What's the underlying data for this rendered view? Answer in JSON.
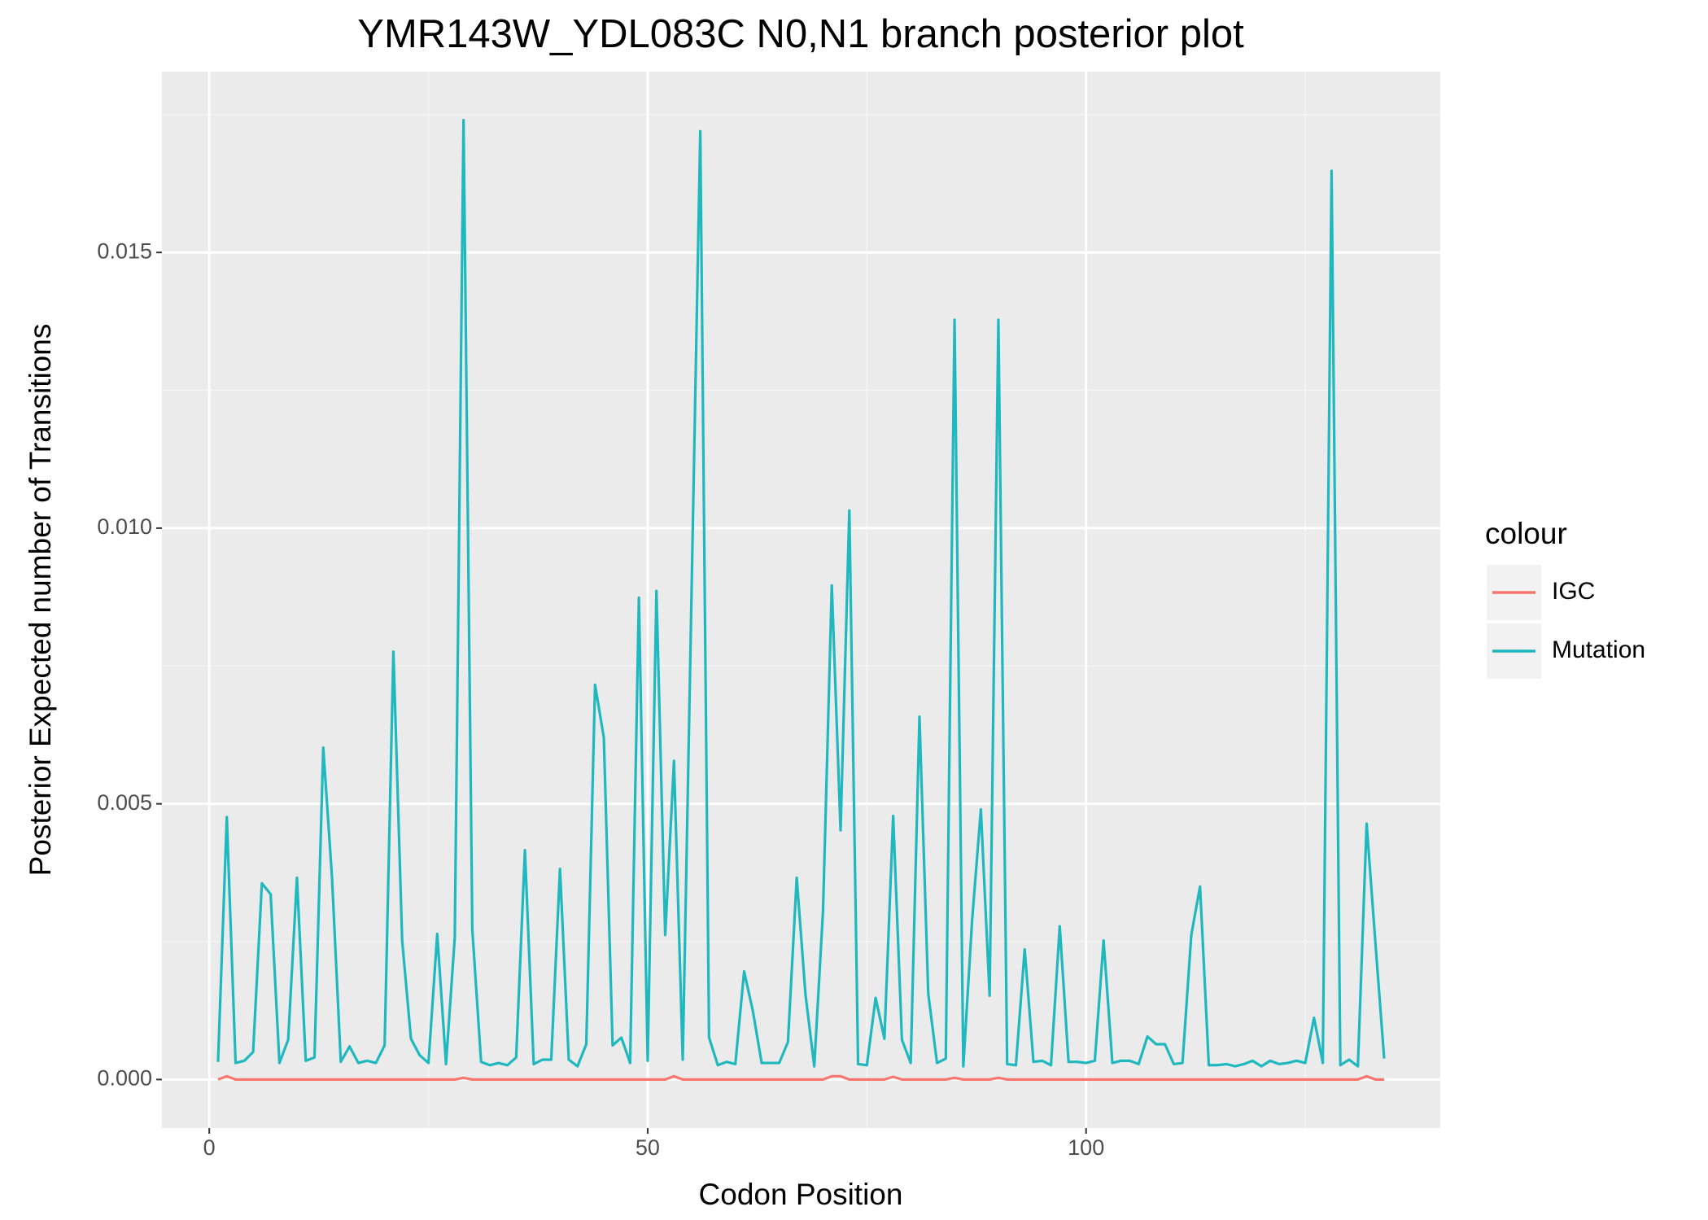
{
  "chart_data": {
    "type": "line",
    "title": "YMR143W_YDL083C N0,N1 branch posterior plot",
    "x_label": "Codon Position",
    "y_label": "Posterior Expected number of Transitions",
    "legend_title": "colour",
    "legend_position": "right",
    "grid": true,
    "xlim": [
      -5.4,
      140.4
    ],
    "xticks": [
      0,
      50,
      100
    ],
    "ylim": [
      -0.00088,
      0.01828
    ],
    "yticks": [
      {
        "value": 0,
        "label": "0.000"
      },
      0.005,
      {
        "value": 0.01,
        "label": "0.010"
      },
      0.015
    ],
    "x": [
      1,
      2,
      3,
      4,
      5,
      6,
      7,
      8,
      9,
      10,
      11,
      12,
      13,
      14,
      15,
      16,
      17,
      18,
      19,
      20,
      21,
      22,
      23,
      24,
      25,
      26,
      27,
      28,
      29,
      30,
      31,
      32,
      33,
      34,
      35,
      36,
      37,
      38,
      39,
      40,
      41,
      42,
      43,
      44,
      45,
      46,
      47,
      48,
      49,
      50,
      51,
      52,
      53,
      54,
      55,
      56,
      57,
      58,
      59,
      60,
      61,
      62,
      63,
      64,
      65,
      66,
      67,
      68,
      69,
      70,
      71,
      72,
      73,
      74,
      75,
      76,
      77,
      78,
      79,
      80,
      81,
      82,
      83,
      84,
      85,
      86,
      87,
      88,
      89,
      90,
      91,
      92,
      93,
      94,
      95,
      96,
      97,
      98,
      99,
      100,
      101,
      102,
      103,
      104,
      105,
      106,
      107,
      108,
      109,
      110,
      111,
      112,
      113,
      114,
      115,
      116,
      117,
      118,
      119,
      120,
      121,
      122,
      123,
      124,
      125,
      126,
      127,
      128,
      129,
      130,
      131,
      132,
      133,
      134
    ],
    "series": [
      {
        "name": "IGC",
        "color": "#F8766D",
        "values": [
          0,
          6e-05,
          0,
          0,
          0,
          0,
          0,
          0,
          0,
          0,
          0,
          0,
          0,
          0,
          0,
          0,
          0,
          0,
          0,
          0,
          0,
          0,
          0,
          0,
          0,
          0,
          0,
          0,
          3e-05,
          0,
          0,
          0,
          0,
          0,
          0,
          0,
          0,
          0,
          0,
          0,
          0,
          0,
          0,
          0,
          0,
          0,
          0,
          0,
          0,
          0,
          0,
          0,
          6e-05,
          0,
          0,
          0,
          0,
          0,
          0,
          0,
          0,
          0,
          0,
          0,
          0,
          0,
          0,
          0,
          0,
          0,
          6e-05,
          6e-05,
          0,
          0,
          0,
          0,
          0,
          5e-05,
          0,
          0,
          0,
          0,
          0,
          0,
          3e-05,
          0,
          0,
          0,
          0,
          3e-05,
          0,
          0,
          0,
          0,
          0,
          0,
          0,
          0,
          0,
          0,
          0,
          0,
          0,
          0,
          0,
          0,
          0,
          0,
          0,
          0,
          0,
          0,
          0,
          0,
          0,
          0,
          0,
          0,
          0,
          0,
          0,
          0,
          0,
          0,
          0,
          0,
          0,
          0,
          0,
          0,
          0,
          6e-05,
          0,
          0
        ]
      },
      {
        "name": "Mutation",
        "color": "#1FB8BE",
        "values": [
          0.00032,
          0.00476,
          0.0003,
          0.00034,
          0.0005,
          0.00356,
          0.00336,
          0.0003,
          0.00072,
          0.00366,
          0.00034,
          0.0004,
          0.00602,
          0.00366,
          0.00032,
          0.0006,
          0.0003,
          0.00034,
          0.0003,
          0.00062,
          0.00776,
          0.00252,
          0.00074,
          0.00044,
          0.0003,
          0.00264,
          0.00028,
          0.00258,
          0.0174,
          0.00272,
          0.00032,
          0.00026,
          0.0003,
          0.00026,
          0.0004,
          0.00416,
          0.00028,
          0.00036,
          0.00036,
          0.00382,
          0.00036,
          0.00024,
          0.00064,
          0.00716,
          0.0062,
          0.00062,
          0.00076,
          0.0003,
          0.00874,
          0.00034,
          0.00886,
          0.00262,
          0.00578,
          0.00036,
          0.00878,
          0.0172,
          0.00076,
          0.00026,
          0.00032,
          0.00028,
          0.00196,
          0.00124,
          0.0003,
          0.0003,
          0.0003,
          0.00068,
          0.00366,
          0.00154,
          0.00024,
          0.00306,
          0.00896,
          0.00452,
          0.01032,
          0.00028,
          0.00026,
          0.00148,
          0.00074,
          0.00478,
          0.00072,
          0.0003,
          0.00658,
          0.00156,
          0.0003,
          0.00038,
          0.01378,
          0.00024,
          0.00288,
          0.0049,
          0.00152,
          0.01378,
          0.00028,
          0.00026,
          0.00236,
          0.00032,
          0.00034,
          0.00026,
          0.00278,
          0.00032,
          0.00032,
          0.0003,
          0.00034,
          0.00252,
          0.0003,
          0.00034,
          0.00034,
          0.00028,
          0.00078,
          0.00064,
          0.00064,
          0.00028,
          0.0003,
          0.00262,
          0.0035,
          0.00026,
          0.00026,
          0.00028,
          0.00024,
          0.00028,
          0.00034,
          0.00024,
          0.00034,
          0.00028,
          0.0003,
          0.00034,
          0.0003,
          0.00112,
          0.0003,
          0.01648,
          0.00026,
          0.00036,
          0.00024,
          0.00464,
          0.00248,
          0.00038
        ]
      }
    ]
  }
}
